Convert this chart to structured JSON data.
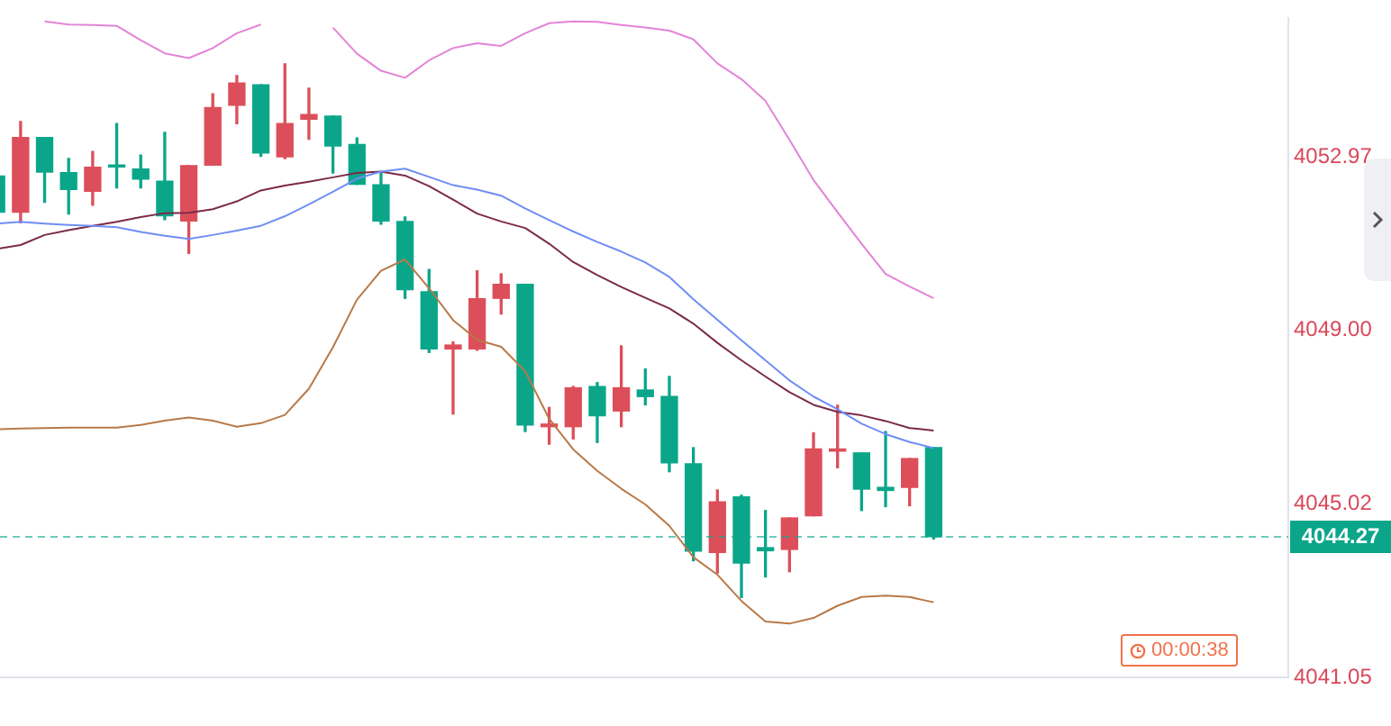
{
  "chart_data": {
    "type": "candlestick",
    "categories": [
      null,
      null,
      null,
      null,
      null,
      null,
      null,
      null,
      null,
      null,
      null,
      null,
      null,
      null,
      null,
      null,
      null,
      null,
      null,
      null,
      null,
      null,
      null,
      null,
      null,
      null,
      null,
      null,
      null,
      null,
      null,
      null,
      null,
      null,
      null,
      null,
      null,
      null,
      null,
      null
    ],
    "ohlc": [
      [
        4052.53,
        4052.53,
        4051.7,
        4051.7
      ],
      [
        4051.7,
        4053.78,
        4051.46,
        4053.41
      ],
      [
        4053.41,
        4053.41,
        4051.93,
        4052.62
      ],
      [
        4052.61,
        4052.93,
        4051.66,
        4052.22
      ],
      [
        4052.18,
        4053.09,
        4051.86,
        4052.73
      ],
      [
        4052.77,
        4053.73,
        4052.26,
        4052.74
      ],
      [
        4052.69,
        4053.01,
        4052.26,
        4052.46
      ],
      [
        4052.41,
        4053.53,
        4051.53,
        4051.62
      ],
      [
        4051.5,
        4052.77,
        4050.76,
        4052.77
      ],
      [
        4052.78,
        4054.41,
        4052.78,
        4054.1
      ],
      [
        4054.15,
        4054.83,
        4053.73,
        4054.66
      ],
      [
        4054.62,
        4054.62,
        4052.98,
        4053.06
      ],
      [
        4052.97,
        4055.1,
        4052.93,
        4053.73
      ],
      [
        4053.83,
        4054.54,
        4053.37,
        4053.94
      ],
      [
        4053.9,
        4053.9,
        4052.6,
        4053.22
      ],
      [
        4053.25,
        4053.4,
        4052.34,
        4052.34
      ],
      [
        4052.33,
        4052.6,
        4051.43,
        4051.5
      ],
      [
        4051.49,
        4051.59,
        4049.73,
        4049.93
      ],
      [
        4049.88,
        4050.39,
        4048.49,
        4048.57
      ],
      [
        4048.57,
        4048.73,
        4047.08,
        4048.66
      ],
      [
        4048.57,
        4050.36,
        4048.54,
        4049.72
      ],
      [
        4049.73,
        4050.29,
        4049.37,
        4050.05
      ],
      [
        4050.05,
        4050.05,
        4046.68,
        4046.83
      ],
      [
        4046.79,
        4047.23,
        4046.39,
        4046.85
      ],
      [
        4046.79,
        4047.71,
        4046.51,
        4047.68
      ],
      [
        4047.71,
        4047.8,
        4046.43,
        4047.04
      ],
      [
        4047.15,
        4048.64,
        4046.79,
        4047.68
      ],
      [
        4047.63,
        4048.11,
        4047.29,
        4047.48
      ],
      [
        4047.48,
        4047.94,
        4045.76,
        4045.96
      ],
      [
        4045.94,
        4046.31,
        4043.72,
        4043.94
      ],
      [
        4043.91,
        4045.34,
        4043.44,
        4045.07
      ],
      [
        4045.18,
        4045.22,
        4042.88,
        4043.67
      ],
      [
        4044.02,
        4044.87,
        4043.35,
        4043.95
      ],
      [
        4043.98,
        4044.7,
        4043.47,
        4044.7
      ],
      [
        4044.75,
        4046.65,
        4044.75,
        4046.28
      ],
      [
        4046.23,
        4047.28,
        4045.85,
        4046.28
      ],
      [
        4046.19,
        4046.19,
        4044.87,
        4045.36
      ],
      [
        4045.4,
        4046.68,
        4044.96,
        4045.33
      ],
      [
        4045.4,
        4046.06,
        4044.98,
        4046.06
      ],
      [
        4046.31,
        4046.31,
        4044.22,
        4044.27
      ]
    ],
    "colors": [
      "#0ba68a",
      "#dc4f5a",
      "#0ba68a",
      "#0ba68a",
      "#dc4f5a",
      "#0ba68a",
      "#0ba68a",
      "#0ba68a",
      "#dc4f5a",
      "#dc4f5a",
      "#dc4f5a",
      "#0ba68a",
      "#dc4f5a",
      "#dc4f5a",
      "#0ba68a",
      "#0ba68a",
      "#0ba68a",
      "#0ba68a",
      "#0ba68a",
      "#dc4f5a",
      "#dc4f5a",
      "#dc4f5a",
      "#0ba68a",
      "#dc4f5a",
      "#dc4f5a",
      "#0ba68a",
      "#dc4f5a",
      "#0ba68a",
      "#0ba68a",
      "#0ba68a",
      "#dc4f5a",
      "#0ba68a",
      "#0ba68a",
      "#dc4f5a",
      "#dc4f5a",
      "#dc4f5a",
      "#0ba68a",
      "#0ba68a",
      "#dc4f5a",
      "#0ba68a"
    ],
    "series": [
      {
        "type": "line",
        "color": "#e384d8",
        "values": [
          null,
          null,
          4056.07,
          4056.0,
          4055.99,
          4055.97,
          4055.64,
          4055.34,
          4055.23,
          4055.46,
          4055.8,
          4056.0,
          null,
          null,
          4055.93,
          4055.33,
          4054.94,
          4054.78,
          4055.18,
          4055.46,
          4055.57,
          4055.51,
          4055.8,
          4056.03,
          4056.07,
          4056.06,
          4055.99,
          4055.93,
          4055.86,
          4055.66,
          4055.11,
          4054.75,
          4054.25,
          4053.36,
          4052.44,
          4051.7,
          4050.98,
          4050.29,
          4050.0,
          4049.73
        ]
      },
      {
        "type": "line",
        "color": "#6f8ef5",
        "values": [
          4051.44,
          4051.48,
          4051.44,
          4051.41,
          4051.39,
          4051.36,
          4051.25,
          4051.16,
          4051.09,
          4051.18,
          4051.28,
          4051.39,
          4051.61,
          4051.88,
          4052.17,
          4052.47,
          4052.63,
          4052.7,
          4052.51,
          4052.32,
          4052.22,
          4052.08,
          4051.79,
          4051.52,
          4051.26,
          4051.02,
          4050.8,
          4050.55,
          4050.22,
          4049.71,
          4049.24,
          4048.77,
          4048.31,
          4047.85,
          4047.48,
          4047.19,
          4046.86,
          4046.62,
          4046.44,
          4046.3
        ]
      },
      {
        "type": "line",
        "color": "#7b2a48",
        "values": [
          4050.86,
          4050.95,
          4051.18,
          4051.29,
          4051.39,
          4051.48,
          4051.59,
          4051.68,
          4051.69,
          4051.77,
          4051.95,
          4052.2,
          4052.31,
          4052.4,
          4052.5,
          4052.6,
          4052.63,
          4052.54,
          4052.3,
          4051.99,
          4051.67,
          4051.49,
          4051.34,
          4050.98,
          4050.56,
          4050.26,
          4049.99,
          4049.74,
          4049.5,
          4049.15,
          4048.71,
          4048.31,
          4047.94,
          4047.58,
          4047.29,
          4047.13,
          4047.05,
          4046.92,
          4046.76,
          4046.7
        ]
      },
      {
        "type": "line",
        "color": "#b87948",
        "values": [
          4046.73,
          4046.75,
          4046.76,
          4046.77,
          4046.77,
          4046.77,
          4046.83,
          4046.93,
          4047.0,
          4046.93,
          4046.79,
          4046.87,
          4047.06,
          4047.66,
          4048.61,
          4049.7,
          4050.36,
          4050.62,
          4049.96,
          4049.23,
          4048.78,
          4048.62,
          4048.06,
          4046.97,
          4046.27,
          4045.78,
          4045.37,
          4045.01,
          4044.52,
          4043.8,
          4043.4,
          4042.8,
          4042.33,
          4042.28,
          4042.41,
          4042.69,
          4042.89,
          4042.92,
          4042.89,
          4042.77
        ]
      }
    ],
    "ylim": [
      4041.05,
      4056.14
    ],
    "yticks": [
      4041.05,
      4045.02,
      {
        "value": 4049,
        "label": "4049.00"
      },
      4052.97
    ],
    "tick_labels": "y",
    "grid": false,
    "legend": false,
    "ref_lines": [
      {
        "axis": "y",
        "value": 4044.27,
        "label": "4044.27",
        "color": "#0ba68a",
        "line_style": "dashed"
      }
    ],
    "annotations": [
      "00:00:38"
    ]
  }
}
